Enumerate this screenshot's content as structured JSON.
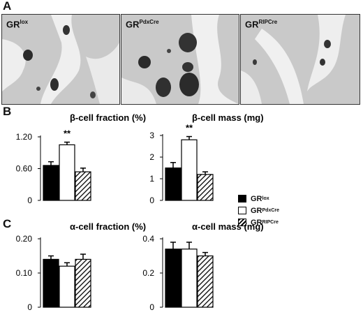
{
  "panels": {
    "a": "A",
    "b": "B",
    "c": "C"
  },
  "micrographs": [
    {
      "label": "GR",
      "sup": "lox"
    },
    {
      "label": "GR",
      "sup": "PdxCre"
    },
    {
      "label": "GR",
      "sup": "RIPCre"
    }
  ],
  "legend": [
    {
      "label": "GR",
      "sup": "lox",
      "fill": "black"
    },
    {
      "label": "GR",
      "sup": "PdxCre",
      "fill": "white"
    },
    {
      "label": "GR",
      "sup": "RIPCre",
      "fill": "hatch"
    }
  ],
  "colors": {
    "black_bar": "#000000",
    "white_bar": "#ffffff",
    "hatch": "#000000"
  },
  "chart_data": [
    {
      "type": "bar",
      "title": "β-cell fraction (%)",
      "categories": [
        "GRlox",
        "GRPdxCre",
        "GRRIPCre"
      ],
      "values": [
        0.66,
        1.05,
        0.54
      ],
      "errors": [
        0.07,
        0.05,
        0.07
      ],
      "ylim": [
        0,
        1.2
      ],
      "yticks": [
        "0",
        "0.60",
        "1.20"
      ],
      "ytick_values": [
        0,
        0.6,
        1.2
      ],
      "annotations": [
        {
          "category": "GRPdxCre",
          "text": "**"
        }
      ]
    },
    {
      "type": "bar",
      "title": "β-cell mass (mg)",
      "categories": [
        "GRlox",
        "GRPdxCre",
        "GRRIPCre"
      ],
      "values": [
        1.5,
        2.8,
        1.2
      ],
      "errors": [
        0.25,
        0.15,
        0.12
      ],
      "ylim": [
        0,
        3
      ],
      "yticks": [
        "0",
        "1",
        "2",
        "3"
      ],
      "ytick_values": [
        0,
        1,
        2,
        3
      ],
      "annotations": [
        {
          "category": "GRPdxCre",
          "text": "**"
        }
      ]
    },
    {
      "type": "bar",
      "title": "α-cell fraction (%)",
      "categories": [
        "GRlox",
        "GRPdxCre",
        "GRRIPCre"
      ],
      "values": [
        0.14,
        0.12,
        0.14
      ],
      "errors": [
        0.01,
        0.01,
        0.015
      ],
      "ylim": [
        0,
        0.2
      ],
      "yticks": [
        "0",
        "0.10",
        "0.20"
      ],
      "ytick_values": [
        0,
        0.1,
        0.2
      ],
      "annotations": []
    },
    {
      "type": "bar",
      "title": "α-cell mass (mg)",
      "categories": [
        "GRlox",
        "GRPdxCre",
        "GRRIPCre"
      ],
      "values": [
        0.34,
        0.34,
        0.3
      ],
      "errors": [
        0.04,
        0.04,
        0.02
      ],
      "ylim": [
        0,
        0.4
      ],
      "yticks": [
        "0",
        "0.2",
        "0.4"
      ],
      "ytick_values": [
        0,
        0.2,
        0.4
      ],
      "annotations": []
    }
  ]
}
